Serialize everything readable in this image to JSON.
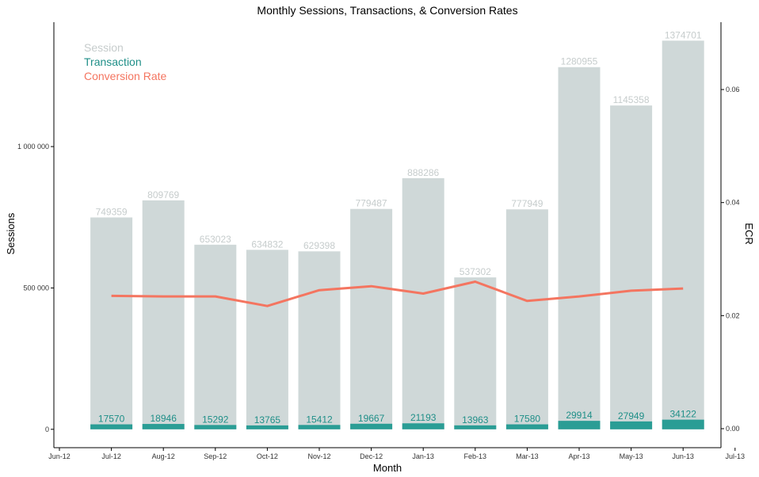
{
  "chart_data": {
    "type": "bar",
    "title": "Monthly Sessions, Transactions, & Conversion Rates",
    "xlabel": "Month",
    "ylabel": "Sessions",
    "y2label": "ECR",
    "categories": [
      "Jul-12",
      "Aug-12",
      "Sep-12",
      "Oct-12",
      "Nov-12",
      "Dec-12",
      "Jan-13",
      "Feb-13",
      "Mar-13",
      "Apr-13",
      "May-13",
      "Jun-13"
    ],
    "x_tick_labels": [
      "Jun-12",
      "Jul-12",
      "Aug-12",
      "Sep-12",
      "Oct-12",
      "Nov-12",
      "Dec-12",
      "Jan-13",
      "Feb-13",
      "Mar-13",
      "Apr-13",
      "May-13",
      "Jun-13",
      "Jul-13"
    ],
    "series": [
      {
        "name": "Session",
        "kind": "bar",
        "axis": "left",
        "color": "#cfd8d8",
        "values": [
          749359,
          809769,
          653023,
          634832,
          629398,
          779487,
          888286,
          537302,
          777949,
          1280955,
          1145358,
          1374701
        ]
      },
      {
        "name": "Transaction",
        "kind": "bar",
        "axis": "left",
        "color": "#2a9d95",
        "values": [
          17570,
          18946,
          15292,
          13765,
          15412,
          19667,
          21193,
          13963,
          17580,
          29914,
          27949,
          34122
        ]
      },
      {
        "name": "Conversion Rate",
        "kind": "line",
        "axis": "right",
        "color": "#f47560",
        "values": [
          0.0235,
          0.0234,
          0.0234,
          0.0217,
          0.0245,
          0.0252,
          0.0239,
          0.026,
          0.0226,
          0.0234,
          0.0244,
          0.0248
        ]
      }
    ],
    "y_ticks": [
      0,
      500000,
      1000000
    ],
    "y_tick_labels": [
      "0",
      "500 000",
      "1 000 000"
    ],
    "ylim": [
      -65000,
      1440000
    ],
    "y2_ticks": [
      0,
      0.02,
      0.04,
      0.06
    ],
    "y2_tick_labels": [
      "0.00",
      "0.02",
      "0.04",
      "0.06"
    ],
    "legend": {
      "placement": "top-left",
      "items": [
        "Session",
        "Transaction",
        "Conversion Rate"
      ]
    },
    "colors": {
      "session_label": "#c6cccc",
      "transaction_label": "#1f8f88",
      "legend_session": "#c6cccc",
      "legend_transaction": "#1f8f88",
      "legend_rate": "#f47560"
    },
    "grid": false
  }
}
